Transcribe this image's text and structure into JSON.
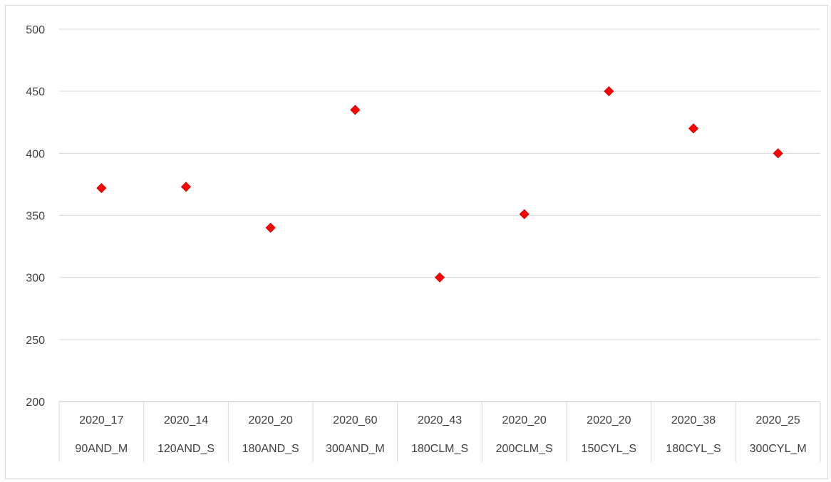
{
  "chart_data": {
    "type": "scatter",
    "title": "",
    "xlabel": "",
    "ylabel": "",
    "ylim": [
      200,
      500
    ],
    "yticks": [
      200,
      250,
      300,
      350,
      400,
      450,
      500
    ],
    "grid": true,
    "legend": "none",
    "marker": "diamond",
    "marker_color": "#ff0000",
    "marker_edge_color": "#c00000",
    "categories": [
      [
        "2020_17",
        "90AND_M"
      ],
      [
        "2020_14",
        "120AND_S"
      ],
      [
        "2020_20",
        "180AND_S"
      ],
      [
        "2020_60",
        "300AND_M"
      ],
      [
        "2020_43",
        "180CLM_S"
      ],
      [
        "2020_20",
        "200CLM_S"
      ],
      [
        "2020_20",
        "150CYL_S"
      ],
      [
        "2020_38",
        "180CYL_S"
      ],
      [
        "2020_25",
        "300CYL_M"
      ]
    ],
    "series": [
      {
        "values": [
          372,
          373,
          340,
          435,
          300,
          351,
          450,
          420,
          400
        ]
      }
    ]
  }
}
